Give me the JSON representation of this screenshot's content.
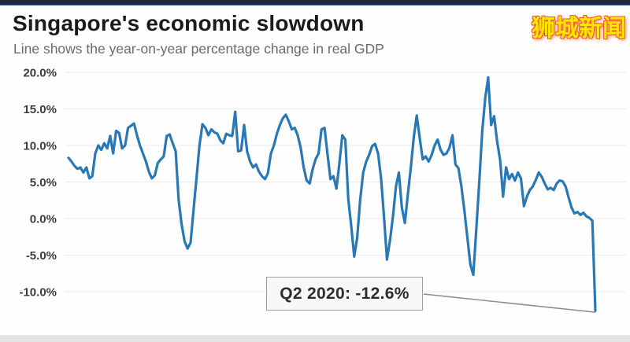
{
  "header": {
    "title": "Singapore's economic slowdown",
    "subtitle": "Line shows the year-on-year percentage change in real GDP"
  },
  "watermark": {
    "text": "狮城新闻",
    "text_color": "#ffe600",
    "outline_color": "#ef5a28"
  },
  "chart_data": {
    "type": "line",
    "title": "Singapore's economic slowdown",
    "subtitle": "Line shows the year-on-year percentage change in real GDP",
    "series_name": "Year-on-year % change in real GDP",
    "x_description": "Quarterly observations, no x-axis labels shown (approx. 1976 Q1 to 2020 Q2)",
    "y_tick_labels": [
      "20.0%",
      "15.0%",
      "10.0%",
      "5.0%",
      "0.0%",
      "-5.0%",
      "-10.0%"
    ],
    "y_tick_values": [
      20,
      15,
      10,
      5,
      0,
      -5,
      -10
    ],
    "ylim": [
      -13.5,
      21
    ],
    "grid": "horizontal gridlines only",
    "legend": "none",
    "line_color": "#2878b5",
    "gridline_color": "#ebebeb",
    "tick_label_color": "#3d3d3d",
    "values": [
      8.3,
      7.8,
      7.2,
      6.8,
      7.0,
      6.3,
      7.0,
      5.5,
      5.8,
      8.9,
      10.0,
      9.4,
      10.3,
      9.6,
      11.3,
      8.9,
      12.0,
      11.7,
      9.6,
      10.0,
      12.4,
      12.7,
      13.0,
      11.4,
      10.0,
      8.9,
      7.8,
      6.4,
      5.5,
      5.9,
      7.6,
      8.1,
      8.5,
      11.3,
      11.5,
      10.3,
      9.2,
      2.6,
      -0.8,
      -3.1,
      -4.1,
      -3.3,
      1.1,
      5.5,
      10.0,
      12.9,
      12.4,
      11.4,
      12.2,
      11.8,
      11.6,
      10.7,
      10.3,
      11.6,
      11.4,
      11.3,
      14.6,
      9.2,
      9.3,
      12.8,
      9.2,
      7.8,
      7.0,
      7.4,
      6.4,
      5.8,
      5.4,
      6.2,
      8.9,
      10.0,
      11.6,
      12.8,
      13.7,
      14.2,
      13.3,
      12.2,
      12.4,
      11.4,
      9.7,
      7.0,
      5.2,
      4.8,
      6.7,
      8.1,
      8.9,
      12.2,
      12.4,
      8.9,
      5.4,
      5.8,
      4.1,
      7.5,
      11.4,
      10.8,
      2.6,
      -1.1,
      -5.2,
      -2.6,
      2.6,
      6.3,
      7.8,
      8.7,
      9.9,
      10.2,
      8.9,
      5.5,
      0.3,
      -5.6,
      -3.0,
      0.3,
      4.4,
      6.3,
      1.5,
      -0.6,
      3.3,
      7.0,
      11.1,
      14.1,
      11.0,
      8.1,
      8.5,
      7.8,
      8.7,
      10.0,
      10.8,
      9.4,
      8.7,
      8.9,
      9.7,
      11.4,
      7.4,
      6.9,
      4.4,
      1.1,
      -2.6,
      -6.3,
      -7.7,
      -1.5,
      5.0,
      12.0,
      16.5,
      19.3,
      12.8,
      14.0,
      10.5,
      8.0,
      3.0,
      7.0,
      5.4,
      6.1,
      5.2,
      6.3,
      5.5,
      1.7,
      3.0,
      3.9,
      4.4,
      5.3,
      6.3,
      5.7,
      4.8,
      4.0,
      4.2,
      3.9,
      4.8,
      5.2,
      5.1,
      4.4,
      2.9,
      1.5,
      0.7,
      0.9,
      0.5,
      0.8,
      0.3,
      0.1,
      -0.3,
      -12.6
    ],
    "annotation": {
      "label": "Q2 2020: -12.6%",
      "points_to_value": -12.6,
      "points_to_x": "last data point",
      "callout_color": "#8c8c8c"
    }
  }
}
